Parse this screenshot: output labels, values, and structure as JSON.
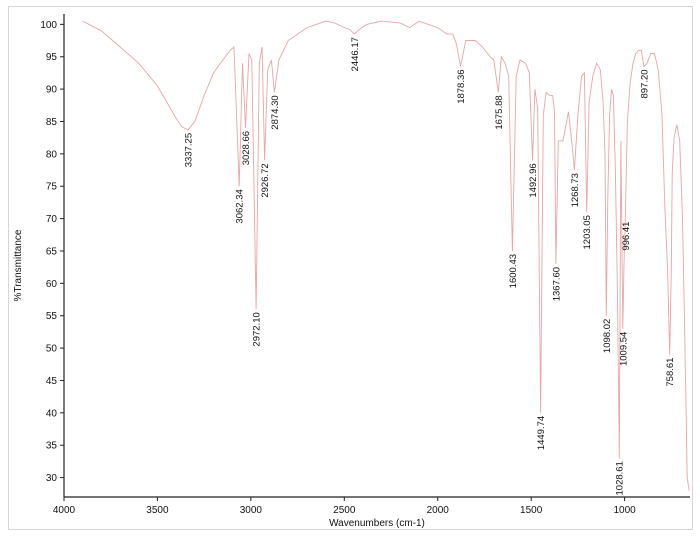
{
  "chart_data": {
    "type": "line",
    "title": "",
    "xlabel": "Wavenumbers (cm-1)",
    "ylabel": "%Transmittance",
    "xlim": [
      4000,
      650
    ],
    "ylim": [
      27,
      100
    ],
    "x_reversed": true,
    "grid": false,
    "xticks": [
      "4000",
      "3500",
      "3000",
      "2500",
      "2000",
      "1500",
      "1000"
    ],
    "yticks": [
      "100",
      "95",
      "90",
      "85",
      "80",
      "75",
      "70",
      "65",
      "60",
      "55",
      "50",
      "45",
      "40",
      "35",
      "30"
    ],
    "line_color": "#e8a6a6",
    "series": [
      {
        "name": "",
        "x": [
          3900,
          3800,
          3700,
          3600,
          3500,
          3450,
          3400,
          3370,
          3337.25,
          3300,
          3250,
          3200,
          3150,
          3110,
          3090,
          3062.34,
          3045,
          3028.66,
          3010,
          2995,
          2972.1,
          2955,
          2940,
          2926.72,
          2910,
          2890,
          2874.3,
          2850,
          2800,
          2750,
          2700,
          2650,
          2600,
          2550,
          2500,
          2470,
          2446.17,
          2420,
          2380,
          2300,
          2200,
          2150,
          2100,
          2050,
          2000,
          1950,
          1920,
          1900,
          1878.36,
          1850,
          1800,
          1760,
          1720,
          1700,
          1675.88,
          1660,
          1640,
          1620,
          1600.43,
          1580,
          1560,
          1530,
          1510,
          1492.96,
          1480,
          1465,
          1449.74,
          1435,
          1420,
          1400,
          1385,
          1375,
          1367.6,
          1355,
          1330,
          1300,
          1280,
          1268.73,
          1250,
          1230,
          1215,
          1203.05,
          1190,
          1170,
          1150,
          1130,
          1115,
          1105,
          1098.02,
          1090,
          1080,
          1070,
          1060,
          1050,
          1040,
          1035,
          1028.61,
          1020,
          1009.54,
          1003,
          996.41,
          985,
          970,
          955,
          940,
          925,
          910,
          897.2,
          880,
          860,
          840,
          820,
          800,
          785,
          770,
          758.61,
          750,
          745,
          735,
          720,
          705,
          690,
          680,
          672,
          665,
          655
        ],
        "y": [
          100.5,
          99,
          96.5,
          94,
          90.5,
          88,
          85.5,
          84.2,
          83.7,
          85,
          89,
          92.5,
          94.5,
          96,
          96.5,
          75,
          94,
          84,
          95.5,
          94.5,
          56,
          94,
          96.5,
          79,
          93,
          94.5,
          89.5,
          94.5,
          97.5,
          98.5,
          99.5,
          100,
          100.5,
          100.2,
          99.5,
          99.2,
          98.5,
          99.2,
          100,
          100.5,
          100.2,
          99.5,
          100.5,
          100,
          99.5,
          98.5,
          98.5,
          97,
          93.5,
          97.5,
          97.5,
          96.5,
          95,
          94.5,
          89.5,
          95,
          94,
          92,
          65,
          92,
          94.5,
          94,
          92.5,
          79,
          90,
          87,
          40,
          86,
          89.5,
          89,
          89,
          86.5,
          63,
          82,
          82,
          86.5,
          81,
          77.5,
          86,
          92,
          92.5,
          71,
          88,
          92,
          94,
          93,
          88,
          80,
          55,
          73,
          86,
          90,
          89,
          78,
          62,
          50,
          33,
          82,
          53,
          63,
          70,
          85,
          91,
          94,
          95.5,
          96,
          96,
          93.5,
          94,
          95.5,
          95.5,
          93,
          86,
          72,
          62,
          49,
          62,
          77,
          82.5,
          84.5,
          82,
          70,
          55,
          42,
          30,
          28
        ]
      }
    ],
    "peak_labels": [
      {
        "x": 3337.25,
        "label": "3337.25"
      },
      {
        "x": 3062.34,
        "label": "3062.34"
      },
      {
        "x": 3028.66,
        "label": "3028.66"
      },
      {
        "x": 2972.1,
        "label": "2972.10"
      },
      {
        "x": 2926.72,
        "label": "2926.72"
      },
      {
        "x": 2874.3,
        "label": "2874.30"
      },
      {
        "x": 2446.17,
        "label": "2446.17"
      },
      {
        "x": 1878.36,
        "label": "1878.36"
      },
      {
        "x": 1675.88,
        "label": "1675.88"
      },
      {
        "x": 1600.43,
        "label": "1600.43"
      },
      {
        "x": 1492.96,
        "label": "1492.96"
      },
      {
        "x": 1449.74,
        "label": "1449.74"
      },
      {
        "x": 1367.6,
        "label": "1367.60"
      },
      {
        "x": 1268.73,
        "label": "1268.73"
      },
      {
        "x": 1203.05,
        "label": "1203.05"
      },
      {
        "x": 1098.02,
        "label": "1098.02"
      },
      {
        "x": 1028.61,
        "label": "1028.61"
      },
      {
        "x": 1009.54,
        "label": "1009.54"
      },
      {
        "x": 996.41,
        "label": "996.41"
      },
      {
        "x": 897.2,
        "label": "897.20"
      },
      {
        "x": 758.61,
        "label": "758.61"
      }
    ]
  }
}
